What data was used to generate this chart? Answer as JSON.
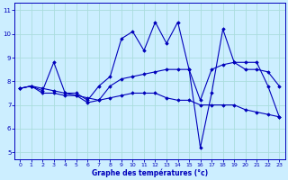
{
  "xlabel": "Graphe des températures (°c)",
  "bg_color": "#cceeff",
  "grid_color": "#aadddd",
  "line_color": "#0000bb",
  "xlim_min": -0.5,
  "xlim_max": 23.5,
  "ylim_min": 4.7,
  "ylim_max": 11.3,
  "xticks": [
    0,
    1,
    2,
    3,
    4,
    5,
    6,
    7,
    8,
    9,
    10,
    11,
    12,
    13,
    14,
    15,
    16,
    17,
    18,
    19,
    20,
    21,
    22,
    23
  ],
  "yticks": [
    5,
    6,
    7,
    8,
    9,
    10,
    11
  ],
  "s1_x": [
    0,
    1,
    2,
    3,
    4,
    5,
    6,
    7,
    8,
    9,
    10,
    11,
    12,
    13,
    14,
    15,
    16,
    17,
    18,
    19,
    20,
    21,
    22,
    23
  ],
  "s1_y": [
    7.7,
    7.8,
    7.6,
    8.8,
    7.5,
    7.5,
    7.2,
    7.8,
    8.2,
    9.8,
    10.1,
    9.3,
    10.5,
    9.6,
    10.5,
    8.5,
    5.2,
    7.5,
    10.2,
    8.8,
    8.8,
    8.8,
    7.8,
    6.5
  ],
  "s2_x": [
    0,
    1,
    2,
    3,
    4,
    5,
    6,
    7,
    8,
    9,
    10,
    11,
    12,
    13,
    14,
    15,
    16,
    17,
    18,
    19,
    20,
    21,
    22,
    23
  ],
  "s2_y": [
    7.7,
    7.8,
    7.7,
    7.6,
    7.5,
    7.4,
    7.3,
    7.2,
    7.8,
    8.1,
    8.2,
    8.3,
    8.4,
    8.5,
    8.5,
    8.5,
    7.2,
    8.5,
    8.7,
    8.8,
    8.5,
    8.5,
    8.4,
    7.8
  ],
  "s3_x": [
    0,
    1,
    2,
    3,
    4,
    5,
    6,
    7,
    8,
    9,
    10,
    11,
    12,
    13,
    14,
    15,
    16,
    17,
    18,
    19,
    20,
    21,
    22,
    23
  ],
  "s3_y": [
    7.7,
    7.8,
    7.5,
    7.5,
    7.4,
    7.4,
    7.1,
    7.2,
    7.3,
    7.4,
    7.5,
    7.5,
    7.5,
    7.3,
    7.2,
    7.2,
    7.0,
    7.0,
    7.0,
    7.0,
    6.8,
    6.7,
    6.6,
    6.5
  ]
}
